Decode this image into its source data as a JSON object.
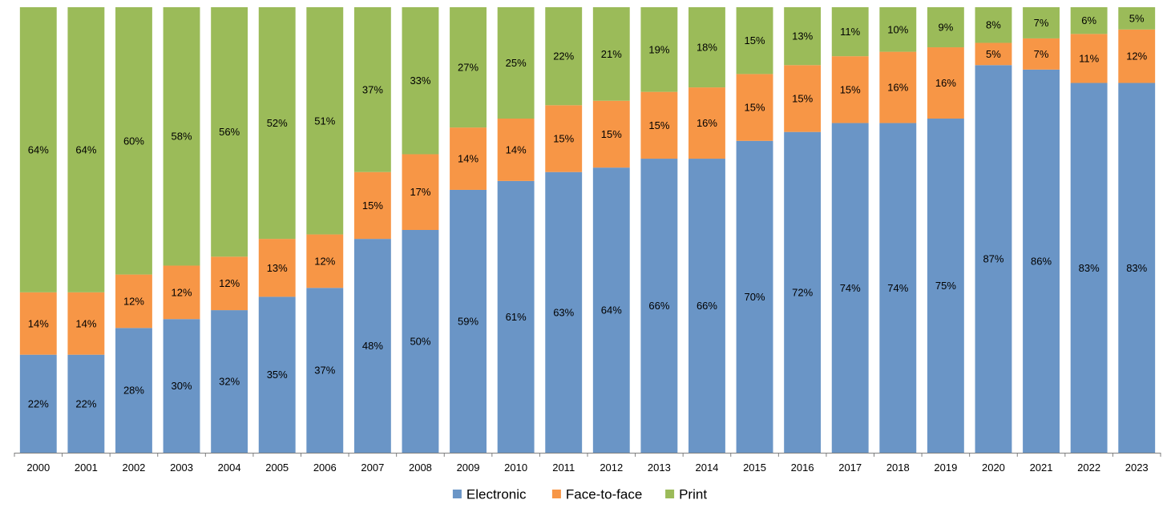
{
  "chart_data": {
    "type": "bar",
    "stacked": true,
    "normalized": "percent",
    "categories": [
      "2000",
      "2001",
      "2002",
      "2003",
      "2004",
      "2005",
      "2006",
      "2007",
      "2008",
      "2009",
      "2010",
      "2011",
      "2012",
      "2013",
      "2014",
      "2015",
      "2016",
      "2017",
      "2018",
      "2019",
      "2020",
      "2021",
      "2022",
      "2023"
    ],
    "series": [
      {
        "name": "Electronic",
        "color": "#6a95c6",
        "values": [
          22,
          22,
          28,
          30,
          32,
          35,
          37,
          48,
          50,
          59,
          61,
          63,
          64,
          66,
          66,
          70,
          72,
          74,
          74,
          75,
          87,
          86,
          83,
          83
        ]
      },
      {
        "name": "Face-to-face",
        "color": "#f79646",
        "values": [
          14,
          14,
          12,
          12,
          12,
          13,
          12,
          15,
          17,
          14,
          14,
          15,
          15,
          15,
          16,
          15,
          15,
          15,
          16,
          16,
          5,
          7,
          11,
          12
        ]
      },
      {
        "name": "Print",
        "color": "#9bbb59",
        "values": [
          64,
          64,
          60,
          58,
          56,
          52,
          51,
          37,
          33,
          27,
          25,
          22,
          21,
          19,
          18,
          15,
          13,
          11,
          10,
          9,
          8,
          7,
          6,
          5
        ]
      }
    ],
    "value_suffix": "%",
    "ylim": [
      0,
      100
    ],
    "grid": false,
    "legend_position": "bottom-center"
  }
}
